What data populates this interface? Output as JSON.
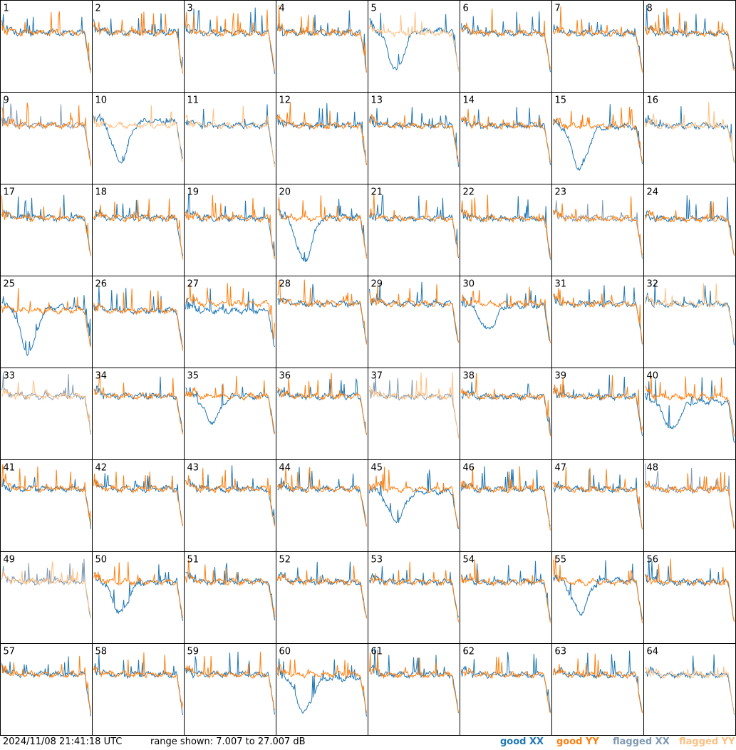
{
  "footer": {
    "timestamp": "2024/11/08 21:41:18 UTC",
    "range_text": "range shown: 7.007 to 27.007 dB"
  },
  "legend": {
    "good_xx": "good XX",
    "good_yy": "good YY",
    "flagged_xx": "flagged XX",
    "flagged_yy": "flagged YY"
  },
  "colors": {
    "good_xx": "#1f77b4",
    "good_yy": "#ff7f0e",
    "flagged_xx": "#7f99b3",
    "flagged_yy": "#ffbf80",
    "frame": "#000000",
    "background": "#ffffff"
  },
  "chart_data": {
    "type": "line",
    "description_grid": "8x8 small multiples of per-antenna spectra",
    "ylim": [
      7.007,
      27.007
    ],
    "yunit": "dB",
    "tiles": [
      {
        "label": "1",
        "xx": "good",
        "yy": "good"
      },
      {
        "label": "2",
        "xx": "good",
        "yy": "good"
      },
      {
        "label": "3",
        "xx": "good",
        "yy": "good"
      },
      {
        "label": "4",
        "xx": "good",
        "yy": "good"
      },
      {
        "label": "5",
        "xx": "good",
        "yy": "flagged"
      },
      {
        "label": "6",
        "xx": "good",
        "yy": "good"
      },
      {
        "label": "7",
        "xx": "good",
        "yy": "good"
      },
      {
        "label": "8",
        "xx": "good",
        "yy": "good"
      },
      {
        "label": "9",
        "xx": "flagged",
        "yy": "good"
      },
      {
        "label": "10",
        "xx": "good",
        "yy": "flagged"
      },
      {
        "label": "11",
        "xx": "good",
        "yy": "flagged"
      },
      {
        "label": "12",
        "xx": "good",
        "yy": "good"
      },
      {
        "label": "13",
        "xx": "good",
        "yy": "good"
      },
      {
        "label": "14",
        "xx": "good",
        "yy": "good"
      },
      {
        "label": "15",
        "xx": "good",
        "yy": "good"
      },
      {
        "label": "16",
        "xx": "good",
        "yy": "flagged"
      },
      {
        "label": "17",
        "xx": "good",
        "yy": "good"
      },
      {
        "label": "18",
        "xx": "good",
        "yy": "good"
      },
      {
        "label": "19",
        "xx": "good",
        "yy": "good"
      },
      {
        "label": "20",
        "xx": "good",
        "yy": "good"
      },
      {
        "label": "21",
        "xx": "good",
        "yy": "good"
      },
      {
        "label": "22",
        "xx": "good",
        "yy": "good"
      },
      {
        "label": "23",
        "xx": "flagged",
        "yy": "good"
      },
      {
        "label": "24",
        "xx": "good",
        "yy": "good"
      },
      {
        "label": "25",
        "xx": "good",
        "yy": "good"
      },
      {
        "label": "26",
        "xx": "good",
        "yy": "good"
      },
      {
        "label": "27",
        "xx": "good",
        "yy": "good"
      },
      {
        "label": "28",
        "xx": "good",
        "yy": "good"
      },
      {
        "label": "29",
        "xx": "good",
        "yy": "good"
      },
      {
        "label": "30",
        "xx": "good",
        "yy": "good"
      },
      {
        "label": "31",
        "xx": "good",
        "yy": "good"
      },
      {
        "label": "32",
        "xx": "good",
        "yy": "flagged"
      },
      {
        "label": "33",
        "xx": "flagged",
        "yy": "flagged"
      },
      {
        "label": "34",
        "xx": "good",
        "yy": "good"
      },
      {
        "label": "35",
        "xx": "good",
        "yy": "good"
      },
      {
        "label": "36",
        "xx": "good",
        "yy": "good"
      },
      {
        "label": "37",
        "xx": "flagged",
        "yy": "flagged"
      },
      {
        "label": "38",
        "xx": "good",
        "yy": "good"
      },
      {
        "label": "39",
        "xx": "good",
        "yy": "good"
      },
      {
        "label": "40",
        "xx": "good",
        "yy": "good"
      },
      {
        "label": "41",
        "xx": "good",
        "yy": "good"
      },
      {
        "label": "42",
        "xx": "good",
        "yy": "good"
      },
      {
        "label": "43",
        "xx": "good",
        "yy": "good"
      },
      {
        "label": "44",
        "xx": "good",
        "yy": "good"
      },
      {
        "label": "45",
        "xx": "good",
        "yy": "good"
      },
      {
        "label": "46",
        "xx": "good",
        "yy": "good"
      },
      {
        "label": "47",
        "xx": "good",
        "yy": "good"
      },
      {
        "label": "48",
        "xx": "flagged",
        "yy": "good"
      },
      {
        "label": "49",
        "xx": "flagged",
        "yy": "flagged"
      },
      {
        "label": "50",
        "xx": "good",
        "yy": "good"
      },
      {
        "label": "51",
        "xx": "good",
        "yy": "good"
      },
      {
        "label": "52",
        "xx": "good",
        "yy": "good"
      },
      {
        "label": "53",
        "xx": "good",
        "yy": "good"
      },
      {
        "label": "54",
        "xx": "good",
        "yy": "good"
      },
      {
        "label": "55",
        "xx": "good",
        "yy": "good"
      },
      {
        "label": "56",
        "xx": "good",
        "yy": "good"
      },
      {
        "label": "57",
        "xx": "good",
        "yy": "good"
      },
      {
        "label": "58",
        "xx": "good",
        "yy": "good"
      },
      {
        "label": "59",
        "xx": "good",
        "yy": "good"
      },
      {
        "label": "60",
        "xx": "good",
        "yy": "good"
      },
      {
        "label": "61",
        "xx": "good",
        "yy": "good"
      },
      {
        "label": "62",
        "xx": "good",
        "yy": "good"
      },
      {
        "label": "63",
        "xx": "good",
        "yy": "good"
      },
      {
        "label": "64",
        "xx": "good",
        "yy": "flagged"
      }
    ]
  }
}
